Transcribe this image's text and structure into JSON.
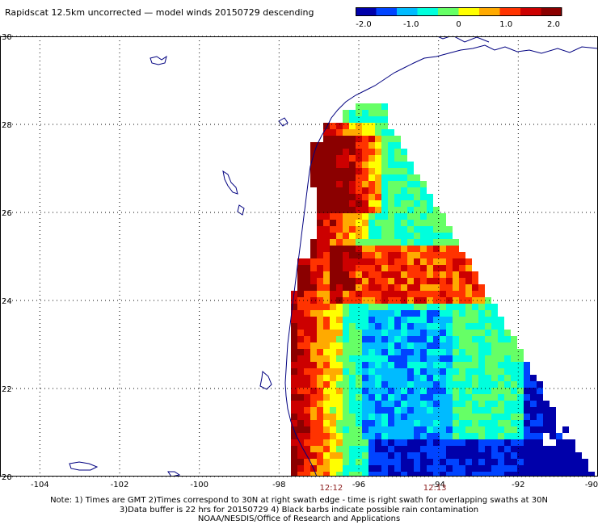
{
  "title": "Rapidscat 12.5km uncorrected — model winds 20150729 descending",
  "colorbar": {
    "labels": [
      "-2.0",
      "-1.0",
      "0",
      "1.0",
      "2.0"
    ],
    "min": -2.0,
    "max": 2.0,
    "colors": [
      "#0000aa",
      "#0044ff",
      "#00bbff",
      "#00ffdd",
      "#66ff66",
      "#ffff00",
      "#ffaa00",
      "#ff3300",
      "#cc0000",
      "#8b0000"
    ]
  },
  "axes": {
    "x_ticks": [
      "-104",
      "-102",
      "-100",
      "-98",
      "-96",
      "-94",
      "-92",
      "-90"
    ],
    "y_ticks": [
      "20",
      "22",
      "24",
      "26",
      "28",
      "30"
    ],
    "lon_range": [
      -105,
      -90
    ],
    "lat_range": [
      20,
      30
    ],
    "grid": "dotted"
  },
  "time_labels": [
    {
      "text": "12:12",
      "lon": -96.7
    },
    {
      "text": "12:13",
      "lon": -94.1
    }
  ],
  "notes": [
    "Note: 1) Times are GMT 2)Times correspond to 30N at right swath edge - time is right swath for overlapping swaths at 30N",
    "3)Data buffer is 22 hrs for 20150729 4) Black barbs indicate possible rain contamination",
    "NOAA/NESDIS/Office of Research and Applications"
  ]
}
